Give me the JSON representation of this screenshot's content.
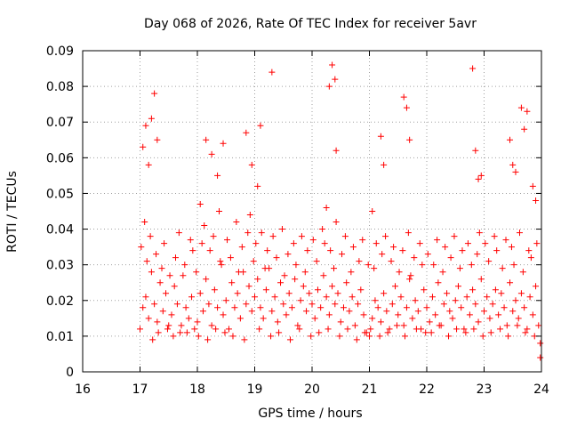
{
  "chart_data": {
    "type": "scatter",
    "title": "Day 068 of 2026, Rate Of TEC Index for receiver 5avr",
    "xlabel": "GPS time / hours",
    "ylabel": "ROTI / TECUs",
    "xlim": [
      16,
      24
    ],
    "ylim": [
      0,
      0.09
    ],
    "xticks": [
      "16",
      "17",
      "18",
      "19",
      "20",
      "21",
      "22",
      "23",
      "24"
    ],
    "yticks": [
      "0",
      "0.01",
      "0.02",
      "0.03",
      "0.04",
      "0.05",
      "0.06",
      "0.07",
      "0.08",
      "0.09"
    ],
    "grid": true,
    "marker": "+",
    "color": "#ff0000",
    "series": [
      {
        "name": "ROTI",
        "x": [
          17.0,
          17.05,
          17.1,
          17.15,
          17.2,
          17.25,
          17.3,
          17.35,
          17.4,
          17.45,
          17.5,
          17.55,
          17.6,
          17.65,
          17.7,
          17.75,
          17.8,
          17.85,
          17.9,
          17.95,
          18.0,
          18.05,
          18.1,
          18.15,
          18.2,
          18.25,
          18.3,
          18.35,
          18.4,
          18.45,
          18.5,
          18.55,
          18.6,
          18.65,
          18.7,
          18.75,
          18.8,
          18.85,
          18.9,
          18.95,
          19.0,
          19.05,
          19.1,
          19.15,
          19.2,
          19.25,
          19.3,
          19.35,
          19.4,
          19.45,
          19.5,
          19.55,
          19.6,
          19.65,
          19.7,
          19.75,
          19.8,
          19.85,
          19.9,
          19.95,
          20.0,
          20.05,
          20.1,
          20.15,
          20.2,
          20.25,
          20.3,
          20.35,
          20.4,
          20.45,
          20.5,
          20.55,
          20.6,
          20.65,
          20.7,
          20.75,
          20.8,
          20.85,
          20.9,
          20.95,
          21.0,
          21.05,
          21.1,
          21.15,
          21.2,
          21.25,
          21.3,
          21.35,
          21.4,
          21.45,
          21.5,
          21.55,
          21.6,
          21.65,
          21.7,
          21.75,
          21.8,
          21.85,
          21.9,
          21.95,
          22.0,
          22.05,
          22.1,
          22.15,
          22.2,
          22.25,
          22.3,
          22.35,
          22.4,
          22.45,
          22.5,
          22.55,
          22.6,
          22.65,
          22.7,
          22.75,
          22.8,
          22.85,
          22.9,
          22.95,
          23.0,
          23.05,
          23.1,
          23.15,
          23.2,
          23.25,
          23.3,
          23.35,
          23.4,
          23.45,
          23.5,
          23.55,
          23.6,
          23.65,
          23.7,
          23.75,
          23.8,
          23.85,
          23.9,
          23.95,
          17.02,
          17.08,
          17.12,
          17.18,
          17.22,
          17.28,
          17.32,
          17.38,
          17.42,
          17.48,
          17.52,
          17.58,
          17.62,
          17.68,
          17.72,
          17.78,
          17.82,
          17.88,
          17.92,
          17.98,
          18.02,
          18.08,
          18.12,
          18.18,
          18.22,
          18.28,
          18.32,
          18.38,
          18.42,
          18.48,
          18.52,
          18.58,
          18.62,
          18.68,
          18.72,
          18.78,
          18.82,
          18.88,
          18.92,
          18.98,
          19.02,
          19.08,
          19.12,
          19.18,
          19.22,
          19.28,
          19.32,
          19.38,
          19.42,
          19.48,
          19.52,
          19.58,
          19.62,
          19.68,
          19.72,
          19.78,
          19.82,
          19.88,
          19.92,
          19.98,
          20.02,
          20.08,
          20.12,
          20.18,
          20.22,
          20.28,
          20.32,
          20.38,
          20.42,
          20.48,
          20.52,
          20.58,
          20.62,
          20.68,
          20.72,
          20.78,
          20.82,
          20.88,
          20.92,
          20.98,
          21.02,
          21.08,
          21.12,
          21.18,
          21.22,
          21.28,
          21.32,
          21.38,
          21.42,
          21.48,
          21.52,
          21.58,
          21.62,
          21.68,
          21.72,
          21.78,
          21.82,
          21.88,
          21.92,
          21.98,
          22.02,
          22.08,
          22.12,
          22.18,
          22.22,
          22.28,
          22.32,
          22.38,
          22.42,
          22.48,
          22.52,
          22.58,
          22.62,
          22.68,
          22.72,
          22.78,
          22.82,
          22.88,
          22.92,
          22.98,
          23.02,
          23.08,
          23.12,
          23.18,
          23.22,
          23.28,
          23.32,
          23.38,
          23.42,
          23.48,
          23.52,
          23.58,
          23.62,
          23.68,
          23.72,
          23.78,
          23.82,
          23.88,
          23.92,
          23.98,
          17.05,
          17.15,
          17.25,
          17.1,
          17.2,
          18.15,
          18.25,
          18.35,
          18.45,
          18.85,
          18.95,
          19.05,
          19.3,
          20.3,
          20.35,
          20.4,
          20.42,
          21.2,
          21.25,
          21.6,
          21.65,
          21.7,
          22.8,
          22.85,
          22.9,
          23.45,
          23.5,
          23.55,
          23.65,
          23.7,
          23.75,
          23.85,
          17.3,
          19.1,
          20.25,
          22.95,
          23.9,
          18.05,
          21.05,
          23.98
        ],
        "y": [
          0.012,
          0.018,
          0.021,
          0.015,
          0.028,
          0.019,
          0.014,
          0.025,
          0.017,
          0.022,
          0.013,
          0.016,
          0.024,
          0.019,
          0.011,
          0.027,
          0.018,
          0.015,
          0.021,
          0.012,
          0.014,
          0.022,
          0.017,
          0.026,
          0.019,
          0.013,
          0.023,
          0.018,
          0.031,
          0.016,
          0.02,
          0.012,
          0.025,
          0.018,
          0.022,
          0.015,
          0.028,
          0.019,
          0.024,
          0.017,
          0.021,
          0.026,
          0.018,
          0.015,
          0.023,
          0.029,
          0.017,
          0.021,
          0.014,
          0.025,
          0.019,
          0.016,
          0.022,
          0.018,
          0.026,
          0.013,
          0.02,
          0.024,
          0.017,
          0.022,
          0.019,
          0.015,
          0.023,
          0.018,
          0.027,
          0.021,
          0.016,
          0.024,
          0.019,
          0.022,
          0.014,
          0.018,
          0.025,
          0.017,
          0.021,
          0.013,
          0.019,
          0.023,
          0.016,
          0.011,
          0.01,
          0.015,
          0.02,
          0.018,
          0.014,
          0.022,
          0.017,
          0.012,
          0.019,
          0.024,
          0.016,
          0.021,
          0.013,
          0.018,
          0.026,
          0.015,
          0.02,
          0.017,
          0.012,
          0.023,
          0.018,
          0.014,
          0.021,
          0.016,
          0.025,
          0.013,
          0.019,
          0.022,
          0.017,
          0.015,
          0.02,
          0.024,
          0.018,
          0.012,
          0.021,
          0.016,
          0.023,
          0.019,
          0.014,
          0.026,
          0.017,
          0.021,
          0.015,
          0.019,
          0.023,
          0.016,
          0.022,
          0.018,
          0.013,
          0.025,
          0.017,
          0.02,
          0.015,
          0.022,
          0.018,
          0.012,
          0.021,
          0.016,
          0.024,
          0.013,
          0.035,
          0.042,
          0.031,
          0.038,
          0.009,
          0.033,
          0.011,
          0.029,
          0.036,
          0.012,
          0.027,
          0.01,
          0.032,
          0.039,
          0.013,
          0.03,
          0.011,
          0.037,
          0.034,
          0.028,
          0.01,
          0.036,
          0.041,
          0.009,
          0.034,
          0.038,
          0.012,
          0.045,
          0.03,
          0.011,
          0.037,
          0.032,
          0.01,
          0.042,
          0.028,
          0.035,
          0.009,
          0.039,
          0.044,
          0.031,
          0.036,
          0.012,
          0.039,
          0.029,
          0.034,
          0.01,
          0.038,
          0.032,
          0.011,
          0.04,
          0.027,
          0.033,
          0.009,
          0.036,
          0.03,
          0.012,
          0.038,
          0.028,
          0.034,
          0.01,
          0.037,
          0.031,
          0.011,
          0.04,
          0.036,
          0.012,
          0.034,
          0.029,
          0.042,
          0.01,
          0.033,
          0.038,
          0.012,
          0.028,
          0.035,
          0.009,
          0.031,
          0.037,
          0.011,
          0.03,
          0.012,
          0.029,
          0.036,
          0.01,
          0.033,
          0.038,
          0.011,
          0.031,
          0.035,
          0.013,
          0.028,
          0.034,
          0.01,
          0.039,
          0.027,
          0.032,
          0.012,
          0.036,
          0.03,
          0.011,
          0.033,
          0.011,
          0.03,
          0.037,
          0.013,
          0.028,
          0.035,
          0.01,
          0.032,
          0.038,
          0.012,
          0.029,
          0.034,
          0.011,
          0.036,
          0.03,
          0.012,
          0.033,
          0.039,
          0.01,
          0.036,
          0.031,
          0.011,
          0.038,
          0.034,
          0.012,
          0.029,
          0.037,
          0.01,
          0.035,
          0.03,
          0.013,
          0.039,
          0.028,
          0.011,
          0.034,
          0.032,
          0.01,
          0.036,
          0.008,
          0.063,
          0.058,
          0.078,
          0.069,
          0.071,
          0.065,
          0.061,
          0.055,
          0.064,
          0.067,
          0.058,
          0.052,
          0.084,
          0.08,
          0.086,
          0.082,
          0.062,
          0.066,
          0.058,
          0.077,
          0.074,
          0.065,
          0.085,
          0.062,
          0.054,
          0.065,
          0.058,
          0.056,
          0.074,
          0.068,
          0.073,
          0.052,
          0.065,
          0.069,
          0.046,
          0.055,
          0.048,
          0.047,
          0.045,
          0.004
        ]
      }
    ]
  }
}
